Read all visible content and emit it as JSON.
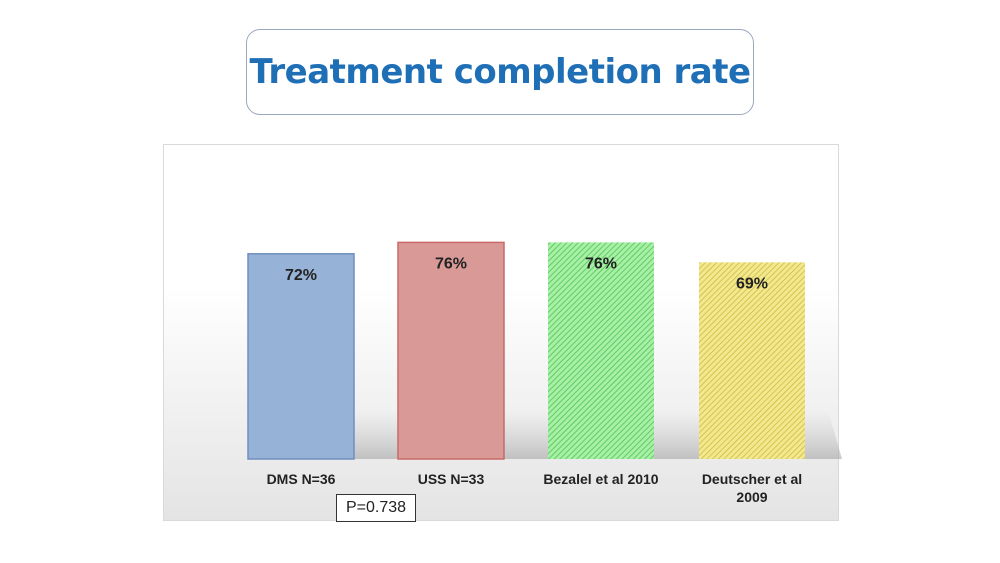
{
  "title": "Treatment completion rate",
  "chart_data": {
    "type": "bar",
    "title": "Treatment completion rate",
    "categories": [
      [
        "DMS N=36"
      ],
      [
        "USS N=33"
      ],
      [
        "Bezalel et al 2010"
      ],
      [
        "Deutscher et al",
        "2009"
      ]
    ],
    "values": [
      72,
      76,
      76,
      69
    ],
    "data_labels": [
      "72%",
      "76%",
      "76%",
      "69%"
    ],
    "units": "%",
    "ylim": [
      0,
      100
    ],
    "grid": false,
    "legend": "none",
    "colors": [
      "#96b2d6",
      "#d89997",
      "#8fe38f",
      "#eadd79"
    ],
    "edge_colors": [
      "#6f8fbd",
      "#c96a68",
      "#5ccf5c",
      "#d3c24a"
    ],
    "patterns": [
      "solid",
      "solid",
      "hatched",
      "hatched"
    ]
  },
  "annotation": {
    "pvalue": "P=0.738"
  }
}
